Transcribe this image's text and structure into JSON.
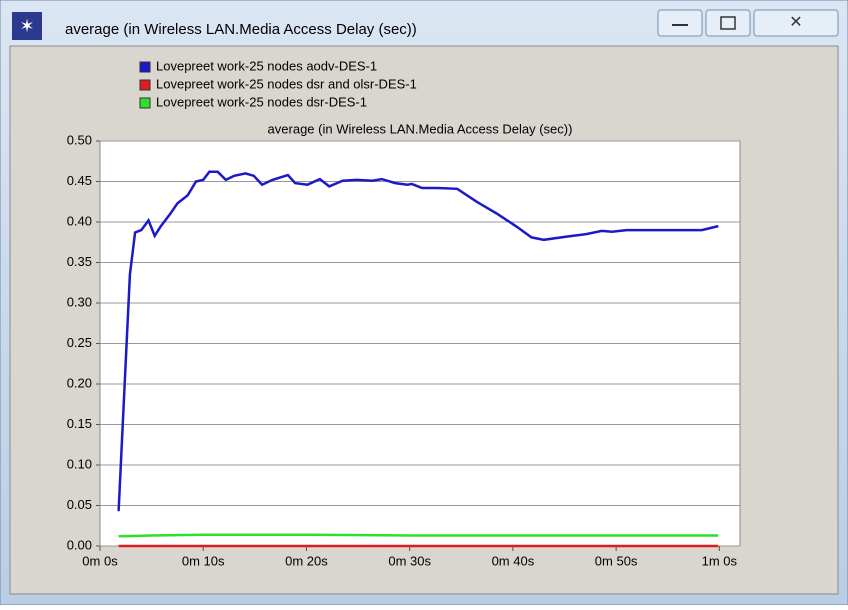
{
  "window": {
    "title": "average (in Wireless LAN.Media Access Delay (sec))"
  },
  "chart_data": {
    "type": "line",
    "title": "average (in Wireless LAN.Media Access Delay (sec))",
    "series": [
      {
        "name": "Lovepreet work-25 nodes aodv-DES-1",
        "color": "#1a1ac8",
        "x": [
          1.8,
          2.9,
          3.4,
          4.0,
          4.7,
          5.3,
          5.9,
          6.8,
          7.5,
          8.5,
          9.3,
          10.0,
          10.6,
          11.4,
          12.2,
          13.0,
          14.1,
          14.9,
          15.7,
          16.7,
          18.2,
          18.9,
          20.1,
          21.3,
          22.2,
          23.5,
          24.9,
          26.4,
          27.3,
          28.6,
          29.8,
          30.2,
          31.2,
          32.7,
          34.6,
          36.5,
          38.5,
          40.4,
          41.8,
          43.0,
          45.2,
          47.1,
          48.6,
          49.6,
          51.0,
          53.0,
          54.9,
          56.8,
          58.3,
          59.9
        ],
        "values": [
          0.043,
          0.335,
          0.387,
          0.39,
          0.402,
          0.383,
          0.395,
          0.41,
          0.423,
          0.433,
          0.45,
          0.452,
          0.462,
          0.462,
          0.452,
          0.457,
          0.46,
          0.457,
          0.446,
          0.452,
          0.458,
          0.448,
          0.446,
          0.453,
          0.444,
          0.451,
          0.452,
          0.451,
          0.453,
          0.448,
          0.446,
          0.447,
          0.442,
          0.442,
          0.441,
          0.425,
          0.41,
          0.394,
          0.381,
          0.378,
          0.382,
          0.385,
          0.389,
          0.388,
          0.39,
          0.39,
          0.39,
          0.39,
          0.39,
          0.395
        ]
      },
      {
        "name": "Lovepreet work-25 nodes dsr and olsr-DES-1",
        "color": "#e01c1c",
        "x": [
          1.8,
          59.9
        ],
        "values": [
          0,
          0
        ]
      },
      {
        "name": "Lovepreet work-25 nodes dsr-DES-1",
        "color": "#2ee02e",
        "x": [
          1.8,
          5,
          10,
          20,
          30,
          40,
          50,
          59.9
        ],
        "values": [
          0.012,
          0.013,
          0.014,
          0.014,
          0.013,
          0.013,
          0.013,
          0.013
        ]
      }
    ],
    "xlim": [
      0,
      62
    ],
    "ylim": [
      0,
      0.5
    ],
    "xticks": [
      {
        "value": 0,
        "label": "0m 0s"
      },
      {
        "value": 10,
        "label": "0m 10s"
      },
      {
        "value": 20,
        "label": "0m 20s"
      },
      {
        "value": 30,
        "label": "0m 30s"
      },
      {
        "value": 40,
        "label": "0m 40s"
      },
      {
        "value": 50,
        "label": "0m 50s"
      },
      {
        "value": 60,
        "label": "1m 0s"
      }
    ],
    "yticks": [
      {
        "value": 0,
        "label": "0.00"
      },
      {
        "value": 0.05,
        "label": "0.05"
      },
      {
        "value": 0.1,
        "label": "0.10"
      },
      {
        "value": 0.15,
        "label": "0.15"
      },
      {
        "value": 0.2,
        "label": "0.20"
      },
      {
        "value": 0.25,
        "label": "0.25"
      },
      {
        "value": 0.3,
        "label": "0.30"
      },
      {
        "value": 0.35,
        "label": "0.35"
      },
      {
        "value": 0.4,
        "label": "0.40"
      },
      {
        "value": 0.45,
        "label": "0.45"
      },
      {
        "value": 0.5,
        "label": "0.50"
      }
    ],
    "grid": true
  }
}
